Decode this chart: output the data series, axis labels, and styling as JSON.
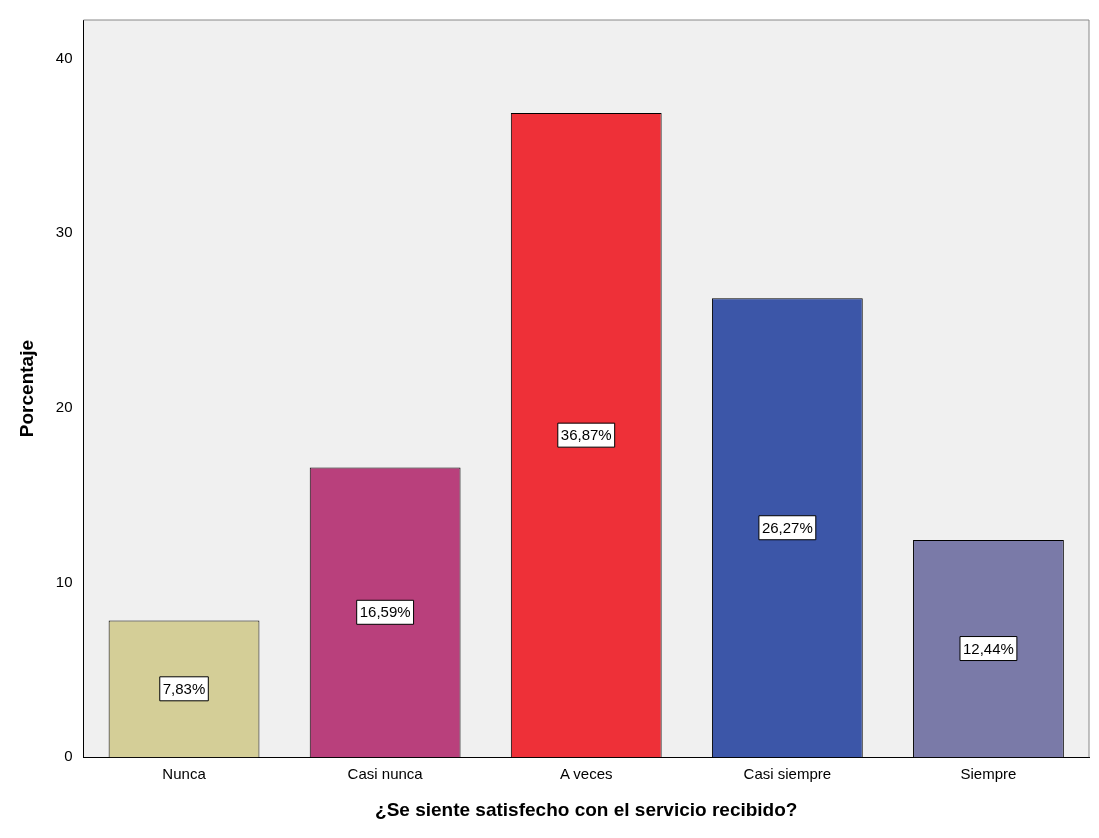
{
  "chart_data": {
    "type": "bar",
    "xlabel": "¿Se siente satisfecho con el servicio recibido?",
    "ylabel": "Porcentaje",
    "categories": [
      "Nunca",
      "Casi nunca",
      "A veces",
      "Casi siempre",
      "Siempre"
    ],
    "values": [
      7.83,
      16.59,
      36.87,
      26.27,
      12.44
    ],
    "colors": [
      "#d4ce97",
      "#b9407c",
      "#ee3038",
      "#3c56a8",
      "#7a7aa8"
    ],
    "value_labels": [
      "7,83%",
      "16,59%",
      "36,87%",
      "26,27%",
      "12,44%"
    ],
    "ylim": [
      0,
      42.2
    ],
    "yticks": [
      0,
      10,
      20,
      30,
      40
    ],
    "grid": false,
    "legend": false
  }
}
